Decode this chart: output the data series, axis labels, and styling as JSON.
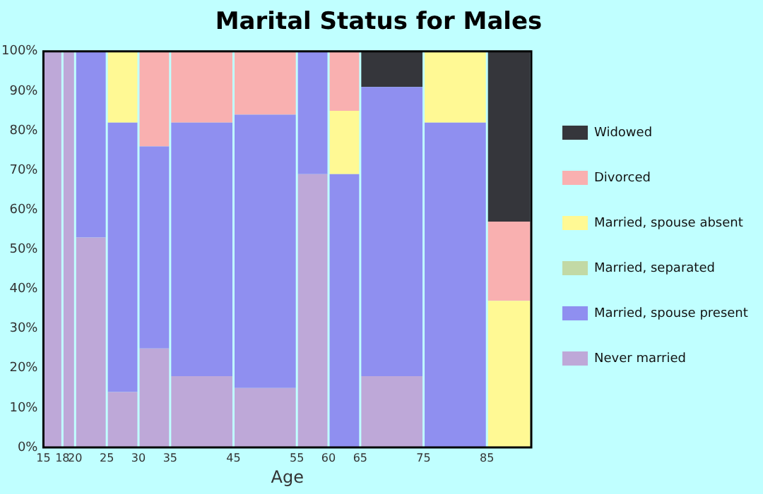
{
  "chart_data": {
    "type": "bar",
    "title": "Marital Status for Males",
    "xlabel": "Age",
    "stacked": true,
    "x": [
      16.5,
      19,
      22.5,
      27.5,
      32.5,
      40,
      50,
      57.5,
      62.5,
      70,
      80,
      88.5
    ],
    "xlim": [
      15,
      92
    ],
    "xticks": [
      15,
      18,
      20,
      25,
      30,
      35,
      45,
      55,
      60,
      65,
      75,
      85
    ],
    "ylim": [
      0,
      100
    ],
    "yticks": [
      {
        "value": 0,
        "label": "0%"
      },
      {
        "value": 10,
        "label": "10%"
      },
      {
        "value": 20,
        "label": "20%"
      },
      {
        "value": 30,
        "label": "30%"
      },
      {
        "value": 40,
        "label": "40%"
      },
      {
        "value": 50,
        "label": "50%"
      },
      {
        "value": 60,
        "label": "60%"
      },
      {
        "value": 70,
        "label": "70%"
      },
      {
        "value": 80,
        "label": "80%"
      },
      {
        "value": 90,
        "label": "90%"
      },
      {
        "value": 100,
        "label": "100%"
      }
    ],
    "grid": false,
    "legend": "right",
    "series": [
      {
        "name": "Never married",
        "color": "#bea8d8",
        "values": [
          100,
          100,
          53,
          14,
          25,
          18,
          15,
          69,
          0,
          18,
          0,
          0
        ]
      },
      {
        "name": "Married, spouse present",
        "color": "#8f8ff0",
        "values": [
          0,
          0,
          47,
          68,
          51,
          64,
          69,
          31,
          69,
          73,
          82,
          0
        ]
      },
      {
        "name": "Married, separated",
        "color": "#c2d9a5",
        "values": [
          0,
          0,
          0,
          0,
          0,
          0,
          0,
          0,
          0,
          0,
          0,
          0
        ]
      },
      {
        "name": "Married, spouse absent",
        "color": "#fff994",
        "values": [
          0,
          0,
          0,
          18,
          0,
          0,
          0,
          0,
          16,
          0,
          18,
          37
        ]
      },
      {
        "name": "Divorced",
        "color": "#f9b0b0",
        "values": [
          0,
          0,
          0,
          0,
          24,
          18,
          16,
          0,
          15,
          0,
          0,
          20
        ]
      },
      {
        "name": "Widowed",
        "color": "#35363b",
        "values": [
          0,
          0,
          0,
          0,
          0,
          0,
          0,
          0,
          0,
          9,
          0,
          43
        ]
      }
    ]
  }
}
